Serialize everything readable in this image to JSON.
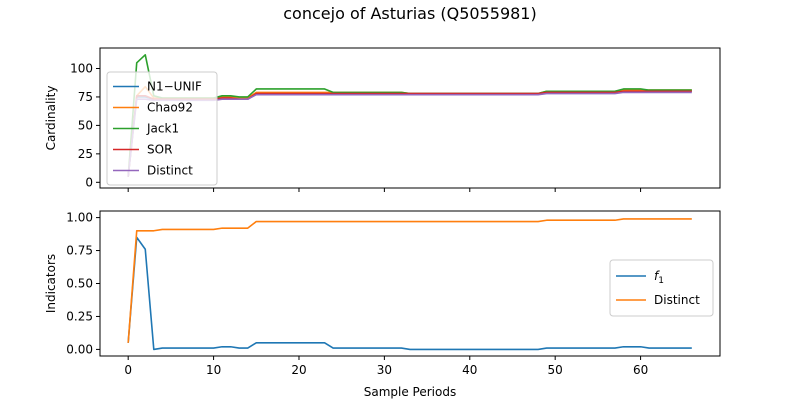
{
  "title": "concejo of Asturias (Q5055981)",
  "chart_data": [
    {
      "type": "line",
      "ylabel": "Cardinality",
      "xlim": [
        -3.3,
        69.3
      ],
      "ylim": [
        -5,
        118
      ],
      "xticks": [
        0,
        10,
        20,
        30,
        40,
        50,
        60
      ],
      "yticks": [
        0,
        25,
        50,
        75,
        100
      ],
      "show_xticklabels": false,
      "legend_position": "upper-left",
      "series": [
        {
          "name": "N1−UNIF",
          "color": "#1f77b4",
          "x": [
            0,
            1,
            2,
            3,
            4,
            5,
            6,
            7,
            8,
            9,
            10,
            11,
            12,
            13,
            14,
            15,
            16,
            17,
            18,
            19,
            20,
            21,
            22,
            23,
            24,
            25,
            26,
            27,
            28,
            29,
            30,
            31,
            32,
            33,
            34,
            35,
            36,
            37,
            38,
            39,
            40,
            41,
            42,
            43,
            44,
            45,
            46,
            47,
            48,
            49,
            50,
            51,
            52,
            53,
            54,
            55,
            56,
            57,
            58,
            59,
            60,
            61,
            62,
            63,
            64,
            65,
            66
          ],
          "y": [
            5,
            75,
            75,
            73,
            73,
            73,
            73,
            73,
            73,
            73,
            73,
            74,
            74,
            73,
            73,
            78,
            78,
            78,
            78,
            78,
            78,
            78,
            78,
            78,
            78,
            78,
            78,
            78,
            78,
            78,
            78,
            78,
            78,
            78,
            78,
            78,
            78,
            78,
            78,
            78,
            78,
            78,
            78,
            78,
            78,
            78,
            78,
            78,
            78,
            79,
            79,
            79,
            79,
            79,
            79,
            79,
            79,
            79,
            80,
            80,
            80,
            80,
            80,
            80,
            80,
            80,
            80
          ]
        },
        {
          "name": "Chao92",
          "color": "#ff7f0e",
          "x": [
            0,
            1,
            2,
            3,
            4,
            5,
            6,
            7,
            8,
            9,
            10,
            11,
            12,
            13,
            14,
            15,
            16,
            17,
            18,
            19,
            20,
            21,
            22,
            23,
            24,
            25,
            26,
            27,
            28,
            29,
            30,
            31,
            32,
            33,
            34,
            35,
            36,
            37,
            38,
            39,
            40,
            41,
            42,
            43,
            44,
            45,
            46,
            47,
            48,
            49,
            50,
            51,
            52,
            53,
            54,
            55,
            56,
            57,
            58,
            59,
            60,
            61,
            62,
            63,
            64,
            65,
            66
          ],
          "y": [
            5,
            76,
            84,
            74,
            74,
            74,
            74,
            74,
            74,
            74,
            74,
            75,
            75,
            74,
            74,
            79,
            79,
            79,
            79,
            79,
            79,
            79,
            79,
            79,
            79,
            79,
            79,
            79,
            79,
            79,
            79,
            79,
            79,
            78,
            78,
            78,
            78,
            78,
            78,
            78,
            78,
            78,
            78,
            78,
            78,
            78,
            78,
            78,
            78,
            80,
            80,
            80,
            80,
            80,
            80,
            80,
            80,
            80,
            81,
            81,
            81,
            81,
            81,
            81,
            81,
            81,
            81
          ]
        },
        {
          "name": "Jack1",
          "color": "#2ca02c",
          "x": [
            0,
            1,
            2,
            3,
            4,
            5,
            6,
            7,
            8,
            9,
            10,
            11,
            12,
            13,
            14,
            15,
            16,
            17,
            18,
            19,
            20,
            21,
            22,
            23,
            24,
            25,
            26,
            27,
            28,
            29,
            30,
            31,
            32,
            33,
            34,
            35,
            36,
            37,
            38,
            39,
            40,
            41,
            42,
            43,
            44,
            45,
            46,
            47,
            48,
            49,
            50,
            51,
            52,
            53,
            54,
            55,
            56,
            57,
            58,
            59,
            60,
            61,
            62,
            63,
            64,
            65,
            66
          ],
          "y": [
            5,
            105,
            112,
            76,
            74,
            74,
            74,
            74,
            74,
            74,
            74,
            76,
            76,
            75,
            75,
            82,
            82,
            82,
            82,
            82,
            82,
            82,
            82,
            82,
            79,
            79,
            79,
            79,
            79,
            79,
            79,
            79,
            79,
            78,
            78,
            78,
            78,
            78,
            78,
            78,
            78,
            78,
            78,
            78,
            78,
            78,
            78,
            78,
            78,
            80,
            80,
            80,
            80,
            80,
            80,
            80,
            80,
            80,
            82,
            82,
            82,
            81,
            81,
            81,
            81,
            81,
            81
          ]
        },
        {
          "name": "SOR",
          "color": "#d62728",
          "x": [
            0,
            1,
            2,
            3,
            4,
            5,
            6,
            7,
            8,
            9,
            10,
            11,
            12,
            13,
            14,
            15,
            16,
            17,
            18,
            19,
            20,
            21,
            22,
            23,
            24,
            25,
            26,
            27,
            28,
            29,
            30,
            31,
            32,
            33,
            34,
            35,
            36,
            37,
            38,
            39,
            40,
            41,
            42,
            43,
            44,
            45,
            46,
            47,
            48,
            49,
            50,
            51,
            52,
            53,
            54,
            55,
            56,
            57,
            58,
            59,
            60,
            61,
            62,
            63,
            64,
            65,
            66
          ],
          "y": [
            5,
            76,
            76,
            73,
            73,
            73,
            73,
            73,
            73,
            73,
            73,
            74,
            74,
            73,
            73,
            78,
            78,
            78,
            78,
            78,
            78,
            78,
            78,
            78,
            78,
            78,
            78,
            78,
            78,
            78,
            78,
            78,
            78,
            78,
            78,
            78,
            78,
            78,
            78,
            78,
            78,
            78,
            78,
            78,
            78,
            78,
            78,
            78,
            78,
            79,
            79,
            79,
            79,
            79,
            79,
            79,
            79,
            79,
            80,
            80,
            80,
            80,
            80,
            80,
            80,
            80,
            80
          ]
        },
        {
          "name": "Distinct",
          "color": "#9467bd",
          "x": [
            0,
            1,
            2,
            3,
            4,
            5,
            6,
            7,
            8,
            9,
            10,
            11,
            12,
            13,
            14,
            15,
            16,
            17,
            18,
            19,
            20,
            21,
            22,
            23,
            24,
            25,
            26,
            27,
            28,
            29,
            30,
            31,
            32,
            33,
            34,
            35,
            36,
            37,
            38,
            39,
            40,
            41,
            42,
            43,
            44,
            45,
            46,
            47,
            48,
            49,
            50,
            51,
            52,
            53,
            54,
            55,
            56,
            57,
            58,
            59,
            60,
            61,
            62,
            63,
            64,
            65,
            66
          ],
          "y": [
            5,
            73,
            73,
            72,
            72,
            72,
            72,
            72,
            72,
            72,
            72,
            73,
            73,
            73,
            73,
            77,
            77,
            77,
            77,
            77,
            77,
            77,
            77,
            77,
            77,
            77,
            77,
            77,
            77,
            77,
            77,
            77,
            77,
            77,
            77,
            77,
            77,
            77,
            77,
            77,
            77,
            77,
            77,
            77,
            77,
            77,
            77,
            77,
            77,
            78,
            78,
            78,
            78,
            78,
            78,
            78,
            78,
            78,
            79,
            79,
            79,
            79,
            79,
            79,
            79,
            79,
            79
          ]
        }
      ]
    },
    {
      "type": "line",
      "ylabel": "Indicators",
      "xlabel": "Sample Periods",
      "xlim": [
        -3.3,
        69.3
      ],
      "ylim": [
        -0.05,
        1.05
      ],
      "xticks": [
        0,
        10,
        20,
        30,
        40,
        50,
        60
      ],
      "yticks": [
        0.0,
        0.25,
        0.5,
        0.75,
        1.0
      ],
      "ytick_labels": [
        "0.00",
        "0.25",
        "0.50",
        "0.75",
        "1.00"
      ],
      "show_xticklabels": true,
      "legend_position": "center-right",
      "series": [
        {
          "name": "f1",
          "color": "#1f77b4",
          "x": [
            0,
            1,
            2,
            3,
            4,
            5,
            6,
            7,
            8,
            9,
            10,
            11,
            12,
            13,
            14,
            15,
            16,
            17,
            18,
            19,
            20,
            21,
            22,
            23,
            24,
            25,
            26,
            27,
            28,
            29,
            30,
            31,
            32,
            33,
            34,
            35,
            36,
            37,
            38,
            39,
            40,
            41,
            42,
            43,
            44,
            45,
            46,
            47,
            48,
            49,
            50,
            51,
            52,
            53,
            54,
            55,
            56,
            57,
            58,
            59,
            60,
            61,
            62,
            63,
            64,
            65,
            66
          ],
          "y": [
            0.05,
            0.85,
            0.76,
            0.0,
            0.01,
            0.01,
            0.01,
            0.01,
            0.01,
            0.01,
            0.01,
            0.02,
            0.02,
            0.01,
            0.01,
            0.05,
            0.05,
            0.05,
            0.05,
            0.05,
            0.05,
            0.05,
            0.05,
            0.05,
            0.01,
            0.01,
            0.01,
            0.01,
            0.01,
            0.01,
            0.01,
            0.01,
            0.01,
            0.0,
            0.0,
            0.0,
            0.0,
            0.0,
            0.0,
            0.0,
            0.0,
            0.0,
            0.0,
            0.0,
            0.0,
            0.0,
            0.0,
            0.0,
            0.0,
            0.01,
            0.01,
            0.01,
            0.01,
            0.01,
            0.01,
            0.01,
            0.01,
            0.01,
            0.02,
            0.02,
            0.02,
            0.01,
            0.01,
            0.01,
            0.01,
            0.01,
            0.01
          ]
        },
        {
          "name": "Distinct",
          "color": "#ff7f0e",
          "x": [
            0,
            1,
            2,
            3,
            4,
            5,
            6,
            7,
            8,
            9,
            10,
            11,
            12,
            13,
            14,
            15,
            16,
            17,
            18,
            19,
            20,
            21,
            22,
            23,
            24,
            25,
            26,
            27,
            28,
            29,
            30,
            31,
            32,
            33,
            34,
            35,
            36,
            37,
            38,
            39,
            40,
            41,
            42,
            43,
            44,
            45,
            46,
            47,
            48,
            49,
            50,
            51,
            52,
            53,
            54,
            55,
            56,
            57,
            58,
            59,
            60,
            61,
            62,
            63,
            64,
            65,
            66
          ],
          "y": [
            0.05,
            0.9,
            0.9,
            0.9,
            0.91,
            0.91,
            0.91,
            0.91,
            0.91,
            0.91,
            0.91,
            0.92,
            0.92,
            0.92,
            0.92,
            0.97,
            0.97,
            0.97,
            0.97,
            0.97,
            0.97,
            0.97,
            0.97,
            0.97,
            0.97,
            0.97,
            0.97,
            0.97,
            0.97,
            0.97,
            0.97,
            0.97,
            0.97,
            0.97,
            0.97,
            0.97,
            0.97,
            0.97,
            0.97,
            0.97,
            0.97,
            0.97,
            0.97,
            0.97,
            0.97,
            0.97,
            0.97,
            0.97,
            0.97,
            0.98,
            0.98,
            0.98,
            0.98,
            0.98,
            0.98,
            0.98,
            0.98,
            0.98,
            0.99,
            0.99,
            0.99,
            0.99,
            0.99,
            0.99,
            0.99,
            0.99,
            0.99
          ]
        }
      ]
    }
  ]
}
